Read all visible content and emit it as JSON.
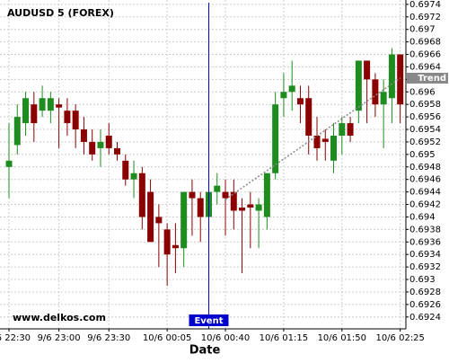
{
  "chart_data": {
    "type": "candlestick",
    "title": "AUDUSD 5 (FOREX)",
    "watermark": "www.delkos.com",
    "x_label": "Date",
    "categories": [
      "9/6 22:30",
      null,
      null,
      null,
      null,
      null,
      "9/6 23:00",
      null,
      null,
      null,
      null,
      null,
      "9/6 23:30",
      null,
      null,
      null,
      null,
      null,
      null,
      "10/6 00:05",
      null,
      null,
      null,
      null,
      null,
      null,
      "10/6 00:40",
      null,
      null,
      null,
      null,
      null,
      null,
      "10/6 01:15",
      null,
      null,
      null,
      null,
      null,
      null,
      "10/6 01:50",
      null,
      null,
      null,
      null,
      null,
      null,
      "10/6 02:25"
    ],
    "open": [
      0.6948,
      0.69515,
      0.6955,
      0.6958,
      0.6957,
      0.6957,
      0.6958,
      0.6957,
      0.6957,
      0.6954,
      0.6952,
      0.6951,
      0.6953,
      0.6951,
      0.6949,
      0.6946,
      0.6947,
      0.6944,
      0.694,
      0.6938,
      0.69355,
      0.6935,
      0.6944,
      0.6943,
      0.694,
      0.6944,
      0.6944,
      0.6944,
      0.69415,
      0.6942,
      0.6941,
      0.694,
      0.6947,
      0.6959,
      0.696,
      0.6959,
      0.6959,
      0.6953,
      0.69525,
      0.6949,
      0.6953,
      0.6955,
      0.6957,
      0.6965,
      0.6962,
      0.6958,
      0.6959,
      0.6966
    ],
    "high": [
      0.6955,
      0.6958,
      0.696,
      0.696,
      0.6961,
      0.696,
      0.6959,
      0.6959,
      0.6958,
      0.6956,
      0.6954,
      0.6954,
      0.6955,
      0.6952,
      0.695,
      0.6949,
      0.6948,
      0.6946,
      0.6942,
      0.6939,
      0.6939,
      0.6944,
      0.6946,
      0.6944,
      0.6946,
      0.6947,
      0.6946,
      0.6946,
      0.6943,
      0.6944,
      0.6943,
      0.6947,
      0.696,
      0.6963,
      0.6965,
      0.6961,
      0.6961,
      0.6956,
      0.6954,
      0.6955,
      0.6956,
      0.6956,
      0.6965,
      0.6965,
      0.6963,
      0.6962,
      0.6967,
      0.6966
    ],
    "low": [
      0.6943,
      0.695,
      0.6953,
      0.6952,
      0.6956,
      0.6955,
      0.6951,
      0.6953,
      0.6951,
      0.695,
      0.6949,
      0.6948,
      0.695,
      0.6949,
      0.6945,
      0.6943,
      0.6938,
      0.6936,
      0.6932,
      0.6929,
      0.6931,
      0.6932,
      0.6937,
      0.6936,
      0.6937,
      0.6942,
      0.6937,
      0.6938,
      0.6931,
      0.6935,
      0.6935,
      0.6938,
      0.6946,
      0.6956,
      0.6957,
      0.6955,
      0.695,
      0.6949,
      0.6949,
      0.6947,
      0.695,
      0.6952,
      0.6955,
      0.6955,
      0.6956,
      0.6951,
      0.6955,
      0.6955
    ],
    "close": [
      0.6949,
      0.6956,
      0.6959,
      0.6955,
      0.6959,
      0.6959,
      0.69575,
      0.6955,
      0.6954,
      0.6952,
      0.695,
      0.6952,
      0.6951,
      0.695,
      0.6946,
      0.6947,
      0.694,
      0.6936,
      0.6939,
      0.6934,
      0.6935,
      0.6944,
      0.6943,
      0.694,
      0.6944,
      0.6945,
      0.6943,
      0.6941,
      0.6941,
      0.69415,
      0.6942,
      0.6947,
      0.6958,
      0.696,
      0.6961,
      0.6958,
      0.6953,
      0.6951,
      0.6952,
      0.6953,
      0.6955,
      0.6953,
      0.6965,
      0.6962,
      0.6958,
      0.696,
      0.6966,
      0.6958
    ],
    "up_color": "#1e8c1e",
    "down_color": "#8b0000",
    "ylim": [
      0.69221,
      0.69747
    ],
    "yticks": [
      0.6924,
      0.6926,
      0.6928,
      0.693,
      0.6932,
      0.6934,
      0.6936,
      0.6938,
      0.694,
      0.6942,
      0.6944,
      0.6946,
      0.6948,
      0.695,
      0.6952,
      0.6954,
      0.6956,
      0.6958,
      0.696,
      0.6962,
      0.6964,
      0.6966,
      0.6968,
      0.697,
      0.6972,
      0.6974
    ],
    "grid": true,
    "event": {
      "label": "Event",
      "at": 24,
      "color": "#0000cc"
    },
    "trend": {
      "label": "Trend",
      "start": [
        26,
        0.69428
      ],
      "end": [
        47,
        0.69622
      ],
      "color": "#888888"
    }
  }
}
